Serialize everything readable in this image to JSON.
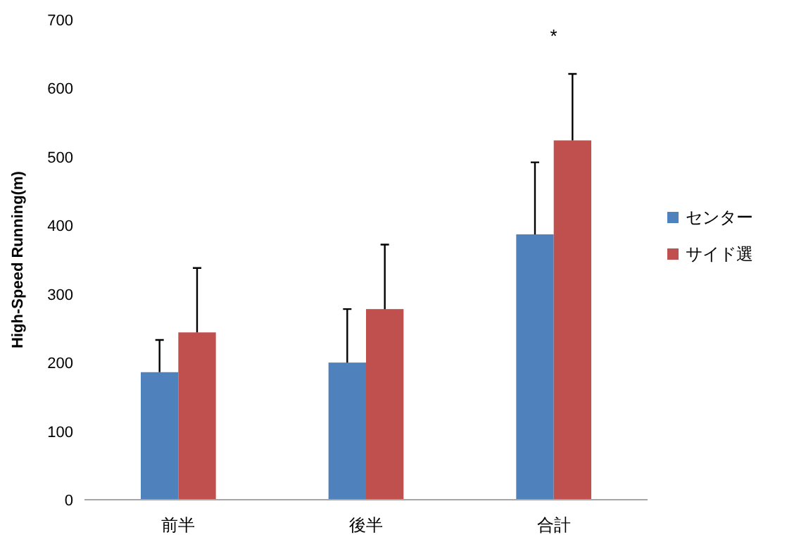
{
  "chart_data": {
    "type": "bar",
    "ylabel": "High-Speed Running(m)",
    "categories": [
      "前半",
      "後半",
      "合計"
    ],
    "series": [
      {
        "name": "センター",
        "color": "#4f81bd",
        "values": [
          186,
          200,
          387
        ],
        "errors": [
          [
            186,
            233
          ],
          [
            200,
            278
          ],
          [
            387,
            492
          ]
        ]
      },
      {
        "name": "サイド選",
        "color": "#c0504d",
        "values": [
          244,
          278,
          524
        ],
        "errors": [
          [
            244,
            338
          ],
          [
            278,
            372
          ],
          [
            524,
            621
          ]
        ]
      }
    ],
    "ylim": [
      0,
      700
    ],
    "yticks": [
      0,
      100,
      200,
      300,
      400,
      500,
      600,
      700
    ],
    "annotations": [
      "*"
    ],
    "legend": "right",
    "grid": false
  }
}
